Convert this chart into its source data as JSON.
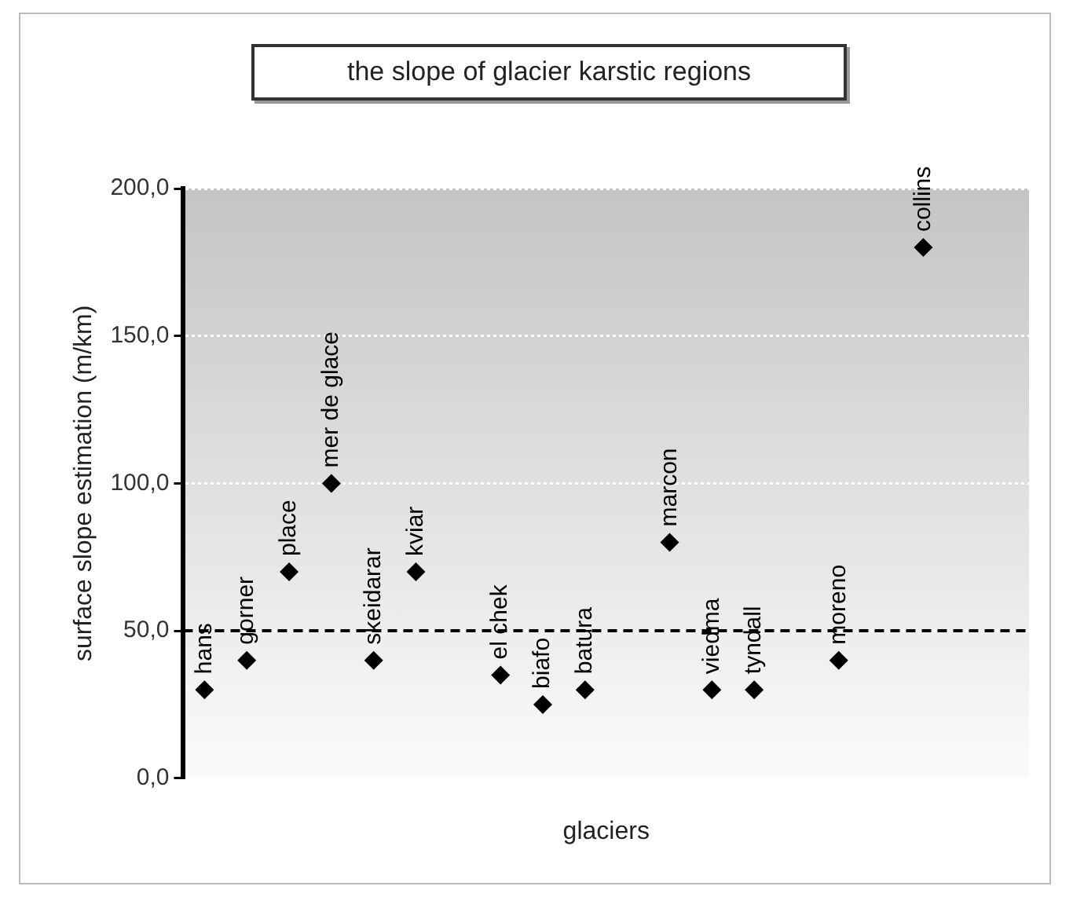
{
  "chart_data": {
    "type": "scatter",
    "title": "the slope of glacier karstic regions",
    "xlabel": "glaciers",
    "ylabel": "surface slope estimation (m/km)",
    "categories": [
      null,
      null,
      null,
      null,
      null,
      null,
      null,
      null,
      null,
      null,
      null,
      null,
      null,
      null,
      null,
      null,
      null,
      null,
      null,
      null
    ],
    "values": [
      30,
      40,
      70,
      100,
      40,
      70,
      null,
      35,
      25,
      30,
      null,
      80,
      30,
      30,
      null,
      40,
      null,
      180,
      null,
      null
    ],
    "value_labels": [
      "hans",
      "gorner",
      "place",
      "mer de glace",
      "skeidarar",
      "kviar",
      null,
      "el chek",
      "biafo",
      "batura",
      null,
      "marcon",
      "viedma",
      "tyndall",
      null,
      "moreno",
      null,
      "collins",
      null,
      null
    ],
    "color": "#000000",
    "marker": "diamond",
    "ylim": [
      0,
      200
    ],
    "yticks": [
      {
        "value": 0,
        "label": "0,0"
      },
      {
        "value": 50,
        "label": "50,0"
      },
      {
        "value": 100,
        "label": "100,0"
      },
      {
        "value": 150,
        "label": "150,0"
      },
      {
        "value": 200,
        "label": "200,0"
      }
    ],
    "grid": "y",
    "legend": false,
    "ref_lines": [
      {
        "axis": "y",
        "value": 50,
        "color": "#000000",
        "line_style": "dashed"
      }
    ]
  }
}
